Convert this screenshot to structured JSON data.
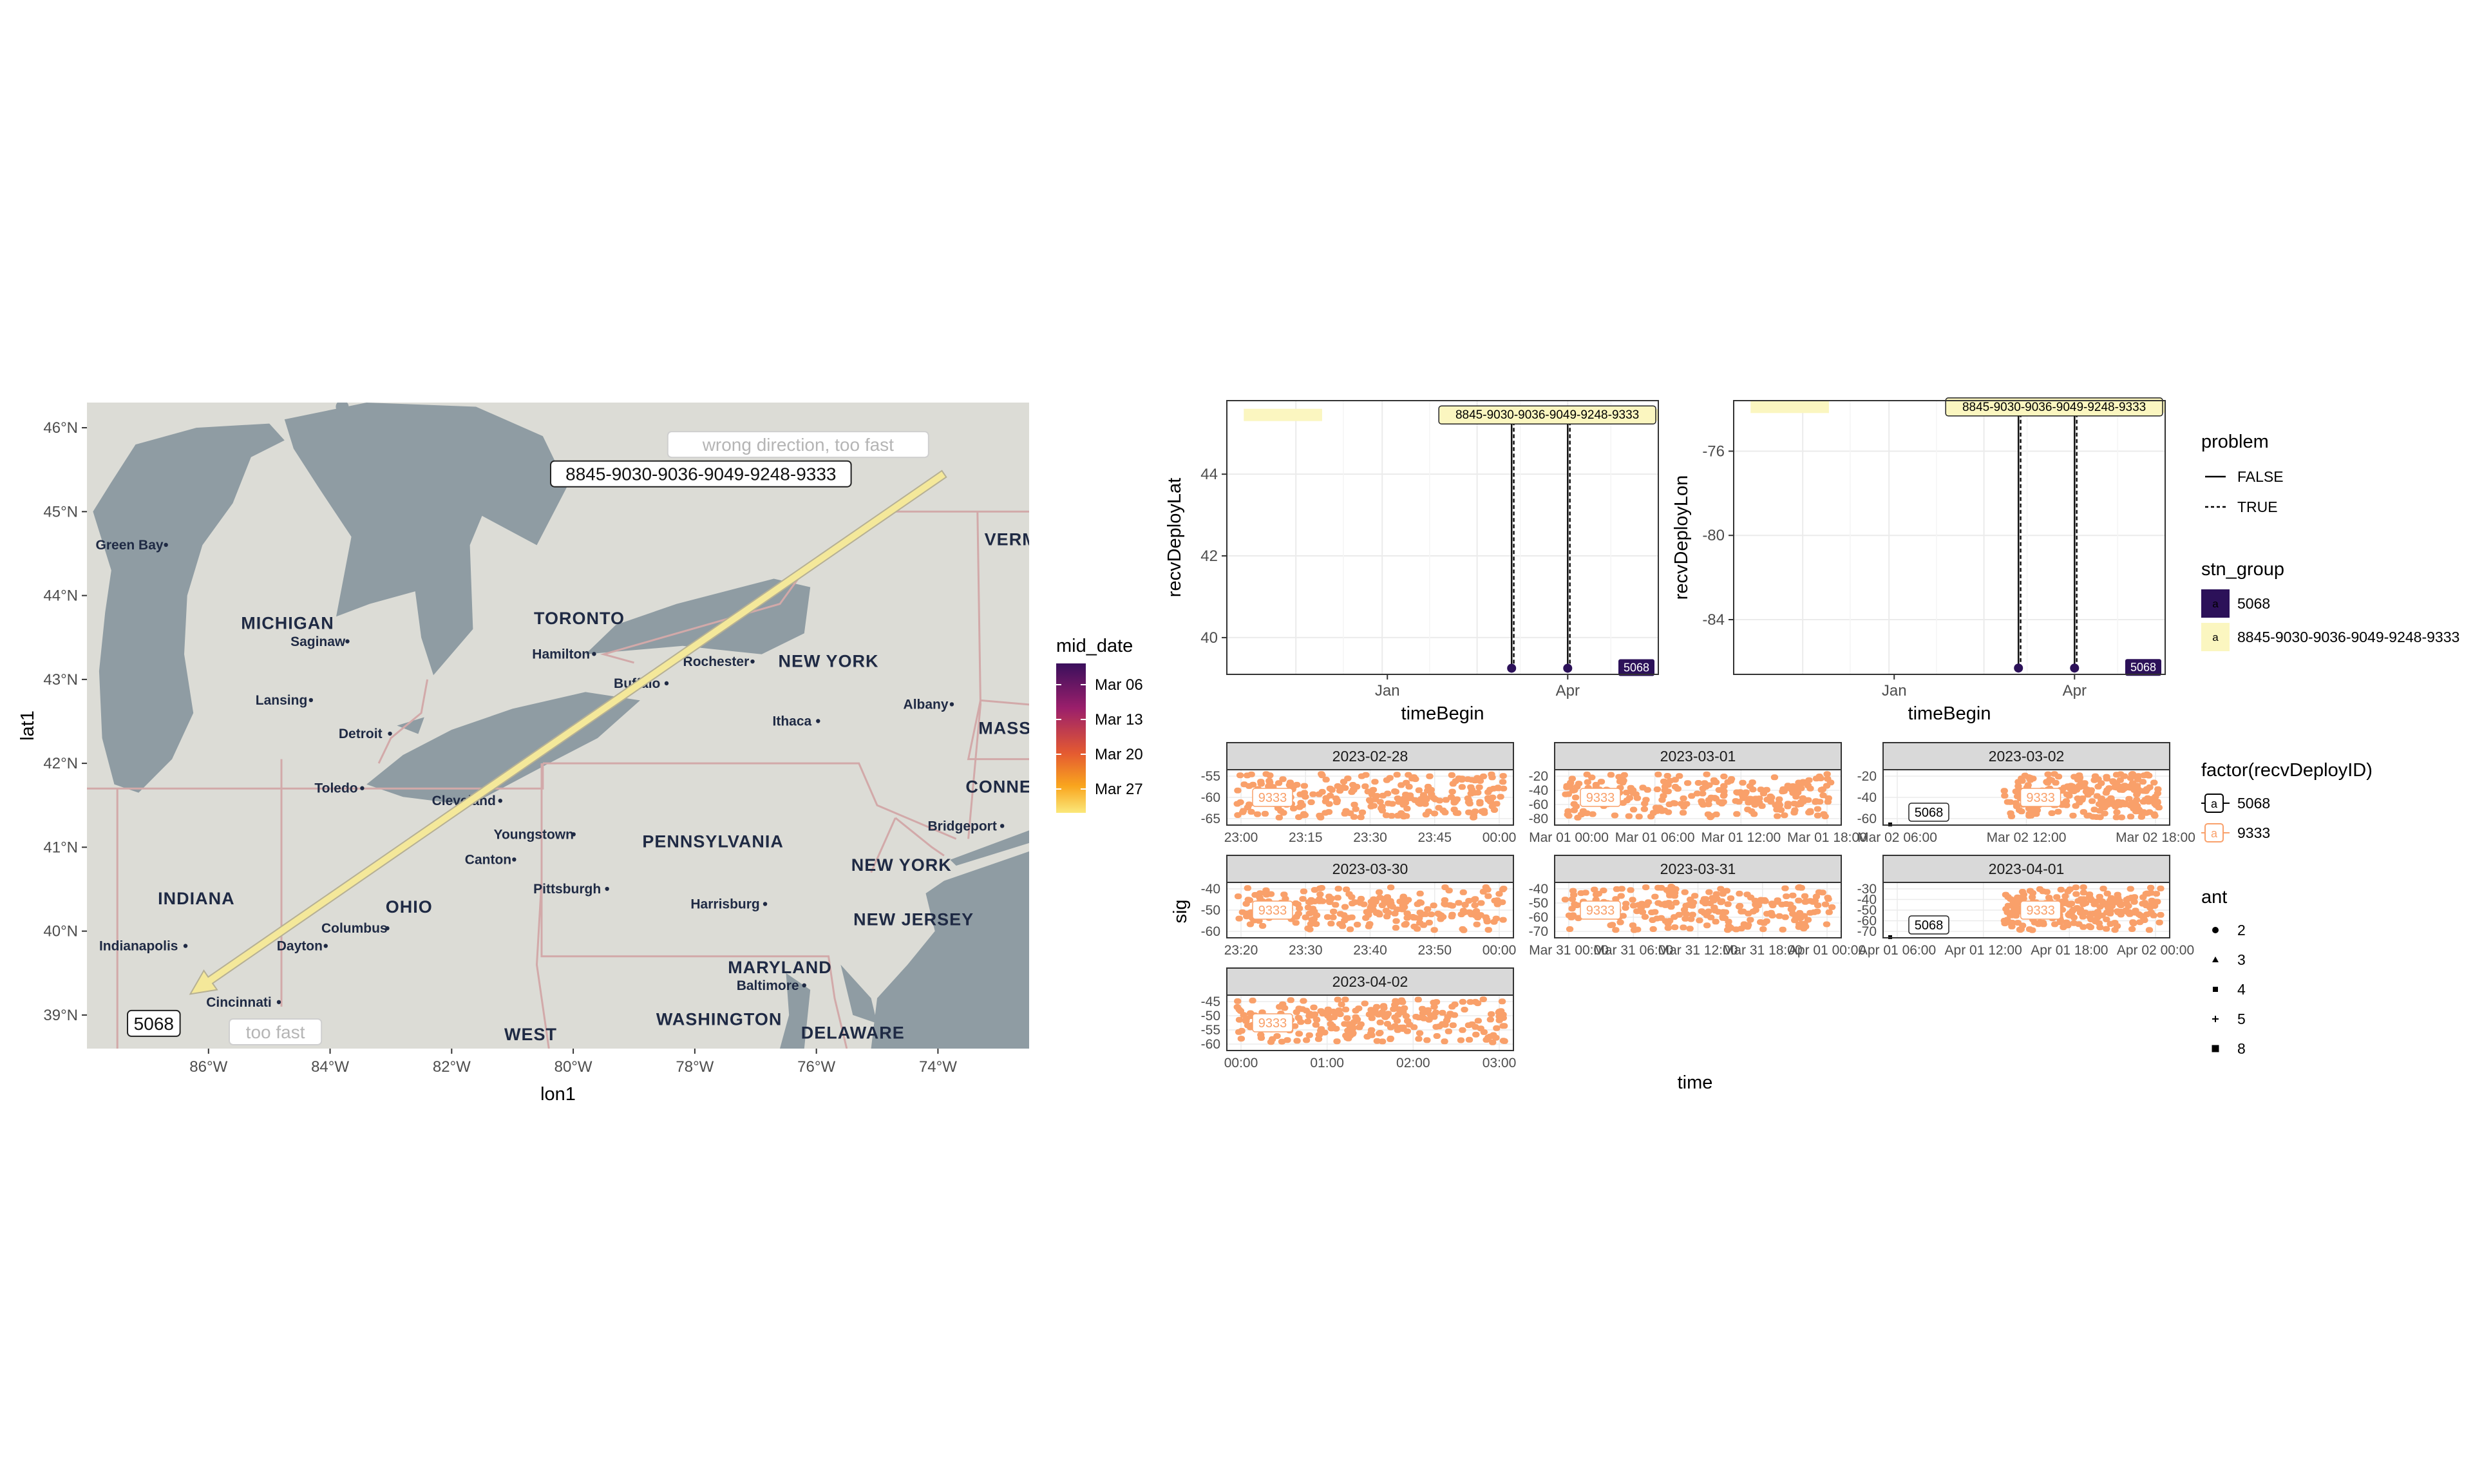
{
  "colors": {
    "water": "#8f9ca3",
    "land": "#dcdcd6",
    "border": "#d2a9a9",
    "path_fill": "#f4e89a",
    "path_edge": "#b6b094",
    "label_text": "#1f2a44",
    "accent_orange": "#f9a06a",
    "grp_5068": "#2c1159",
    "grp_other": "#fbf6c0",
    "panel_border": "#333333",
    "strip_fill": "#d9d9d9",
    "grid": "#ebebeb"
  },
  "map": {
    "xlabel": "lon1",
    "ylabel": "lat1",
    "xlim": [
      -88,
      -72.5
    ],
    "ylim": [
      38.6,
      46.3
    ],
    "x_ticks": [
      {
        "v": -86,
        "t": "86°W"
      },
      {
        "v": -84,
        "t": "84°W"
      },
      {
        "v": -82,
        "t": "82°W"
      },
      {
        "v": -80,
        "t": "80°W"
      },
      {
        "v": -78,
        "t": "78°W"
      },
      {
        "v": -76,
        "t": "76°W"
      },
      {
        "v": -74,
        "t": "74°W"
      }
    ],
    "y_ticks": [
      {
        "v": 39,
        "t": "39°N"
      },
      {
        "v": 40,
        "t": "40°N"
      },
      {
        "v": 41,
        "t": "41°N"
      },
      {
        "v": 42,
        "t": "42°N"
      },
      {
        "v": 43,
        "t": "43°N"
      },
      {
        "v": 44,
        "t": "44°N"
      },
      {
        "v": 45,
        "t": "45°N"
      },
      {
        "v": 46,
        "t": "46°N"
      }
    ],
    "places": [
      {
        "name": "Green Bay",
        "lon": -87.3,
        "lat": 44.55,
        "kind": "city"
      },
      {
        "name": "MICHIGAN",
        "lon": -84.7,
        "lat": 43.6,
        "kind": "region"
      },
      {
        "name": "Saginaw",
        "lon": -84.2,
        "lat": 43.4,
        "kind": "city"
      },
      {
        "name": "Lansing",
        "lon": -84.8,
        "lat": 42.7,
        "kind": "city"
      },
      {
        "name": "Detroit",
        "lon": -83.5,
        "lat": 42.3,
        "kind": "city"
      },
      {
        "name": "TORONTO",
        "lon": -79.9,
        "lat": 43.66,
        "kind": "region"
      },
      {
        "name": "Hamilton",
        "lon": -80.2,
        "lat": 43.25,
        "kind": "city"
      },
      {
        "name": "Rochester",
        "lon": -77.65,
        "lat": 43.16,
        "kind": "city"
      },
      {
        "name": "NEW YORK",
        "lon": -75.8,
        "lat": 43.15,
        "kind": "region"
      },
      {
        "name": "Buffalo",
        "lon": -78.95,
        "lat": 42.9,
        "kind": "city"
      },
      {
        "name": "Albany",
        "lon": -74.2,
        "lat": 42.65,
        "kind": "city"
      },
      {
        "name": "Ithaca",
        "lon": -76.4,
        "lat": 42.45,
        "kind": "city"
      },
      {
        "name": "MASS",
        "lon": -72.9,
        "lat": 42.35,
        "kind": "region"
      },
      {
        "name": "Toledo",
        "lon": -83.9,
        "lat": 41.65,
        "kind": "city"
      },
      {
        "name": "Cleveland",
        "lon": -81.8,
        "lat": 41.5,
        "kind": "city"
      },
      {
        "name": "CONNECT",
        "lon": -72.8,
        "lat": 41.65,
        "kind": "region"
      },
      {
        "name": "Bridgeport",
        "lon": -73.6,
        "lat": 41.2,
        "kind": "city"
      },
      {
        "name": "Youngstown",
        "lon": -80.65,
        "lat": 41.1,
        "kind": "city"
      },
      {
        "name": "PENNSYLVANIA",
        "lon": -77.7,
        "lat": 41.0,
        "kind": "region"
      },
      {
        "name": "Canton",
        "lon": -81.4,
        "lat": 40.8,
        "kind": "city"
      },
      {
        "name": "NEW YORK",
        "lon": -74.6,
        "lat": 40.72,
        "kind": "region"
      },
      {
        "name": "Pittsburgh",
        "lon": -80.1,
        "lat": 40.45,
        "kind": "city"
      },
      {
        "name": "INDIANA",
        "lon": -86.2,
        "lat": 40.32,
        "kind": "region"
      },
      {
        "name": "OHIO",
        "lon": -82.7,
        "lat": 40.22,
        "kind": "region"
      },
      {
        "name": "Harrisburg",
        "lon": -77.5,
        "lat": 40.27,
        "kind": "city"
      },
      {
        "name": "NEW JERSEY",
        "lon": -74.4,
        "lat": 40.07,
        "kind": "region"
      },
      {
        "name": "Columbus",
        "lon": -83.6,
        "lat": 39.98,
        "kind": "city"
      },
      {
        "name": "Indianapolis",
        "lon": -87.15,
        "lat": 39.77,
        "kind": "city"
      },
      {
        "name": "Dayton",
        "lon": -84.5,
        "lat": 39.77,
        "kind": "city"
      },
      {
        "name": "MARYLAND",
        "lon": -76.6,
        "lat": 39.5,
        "kind": "region"
      },
      {
        "name": "Baltimore",
        "lon": -76.8,
        "lat": 39.3,
        "kind": "city"
      },
      {
        "name": "Cincinnati",
        "lon": -85.5,
        "lat": 39.1,
        "kind": "city"
      },
      {
        "name": "WASHINGTON",
        "lon": -77.6,
        "lat": 38.88,
        "kind": "region"
      },
      {
        "name": "WEST",
        "lon": -80.7,
        "lat": 38.7,
        "kind": "region"
      },
      {
        "name": "DELAWARE",
        "lon": -75.4,
        "lat": 38.72,
        "kind": "region"
      },
      {
        "name": "VERM",
        "lon": -72.8,
        "lat": 44.6,
        "kind": "region"
      }
    ],
    "track": {
      "from": {
        "lon": -73.9,
        "lat": 45.45
      },
      "to": {
        "lon": -86.3,
        "lat": 39.25
      }
    },
    "labels": [
      {
        "text": "wrong direction, too fast",
        "lon": -76.3,
        "lat": 45.8,
        "style": "faded"
      },
      {
        "text": "8845-9030-9036-9049-9248-9333",
        "lon": -77.9,
        "lat": 45.45,
        "style": "solid"
      },
      {
        "text": "5068",
        "lon": -86.9,
        "lat": 38.9,
        "style": "solid"
      },
      {
        "text": "too fast",
        "lon": -84.9,
        "lat": 38.8,
        "style": "faded"
      }
    ],
    "legend": {
      "title": "mid_date",
      "breaks": [
        "Mar 06",
        "Mar 13",
        "Mar 20",
        "Mar 27"
      ]
    }
  },
  "chart_data": [
    {
      "type": "line",
      "title": "",
      "xlabel": "timeBegin",
      "ylabel": "recvDeployLat",
      "x_ticks": [
        "Jan",
        "Apr"
      ],
      "y_ticks": [
        40,
        42,
        44
      ],
      "ylim": [
        39.1,
        45.8
      ],
      "series": [
        {
          "name": "5068",
          "x": [
            "Mar 01",
            "Mar 01"
          ],
          "y": [
            45.45,
            39.25
          ]
        },
        {
          "name": "5068",
          "x": [
            "Apr 01",
            "Apr 01"
          ],
          "y": [
            45.45,
            39.25
          ]
        }
      ],
      "labels": [
        "8845-9030-9036-9049-9248-9333",
        "5068"
      ]
    },
    {
      "type": "line",
      "title": "",
      "xlabel": "timeBegin",
      "ylabel": "recvDeployLon",
      "x_ticks": [
        "Jan",
        "Apr"
      ],
      "y_ticks": [
        -76,
        -80,
        -84
      ],
      "ylim": [
        -86.6,
        -73.6
      ],
      "series": [
        {
          "name": "5068",
          "x": [
            "Mar 01",
            "Mar 01"
          ],
          "y": [
            -73.9,
            -86.3
          ]
        },
        {
          "name": "5068",
          "x": [
            "Apr 01",
            "Apr 01"
          ],
          "y": [
            -73.9,
            -86.3
          ]
        }
      ],
      "labels": [
        "8845-9030-9036-9049-9248-9333",
        "5068"
      ]
    },
    {
      "type": "scatter",
      "title": "",
      "xlabel": "time",
      "ylabel": "sig",
      "facets": [
        {
          "strip": "2023-02-28",
          "x_ticks": [
            "23:00",
            "23:15",
            "23:30",
            "23:45",
            "00:00"
          ],
          "y_ticks": [
            "-55",
            "-60",
            "-65"
          ],
          "label": "9333"
        },
        {
          "strip": "2023-03-01",
          "x_ticks": [
            "Mar 01 00:00",
            "Mar 01 06:00",
            "Mar 01 12:00",
            "Mar 01 18:00"
          ],
          "y_ticks": [
            "-20",
            "-40",
            "-60",
            "-80"
          ],
          "label": "9333"
        },
        {
          "strip": "2023-03-02",
          "x_ticks": [
            "Mar 02 06:00",
            "Mar 02 12:00",
            "Mar 02 18:00"
          ],
          "y_ticks": [
            "-20",
            "-40",
            "-60"
          ],
          "label": "9333",
          "label2": "5068"
        },
        {
          "strip": "2023-03-30",
          "x_ticks": [
            "23:20",
            "23:30",
            "23:40",
            "23:50",
            "00:00"
          ],
          "y_ticks": [
            "-40",
            "-50",
            "-60"
          ],
          "label": "9333"
        },
        {
          "strip": "2023-03-31",
          "x_ticks": [
            "Mar 31 00:00",
            "Mar 31 06:00",
            "Mar 31 12:00",
            "Mar 31 18:00",
            "Apr 01 00:00"
          ],
          "y_ticks": [
            "-40",
            "-50",
            "-60",
            "-70"
          ],
          "label": "9333"
        },
        {
          "strip": "2023-04-01",
          "x_ticks": [
            "Apr 01 06:00",
            "Apr 01 12:00",
            "Apr 01 18:00",
            "Apr 02 00:00"
          ],
          "y_ticks": [
            "-30",
            "-40",
            "-50",
            "-60",
            "-70"
          ],
          "label": "9333",
          "label2": "5068"
        },
        {
          "strip": "2023-04-02",
          "x_ticks": [
            "00:00",
            "01:00",
            "02:00",
            "03:00"
          ],
          "y_ticks": [
            "-45",
            "-50",
            "-55",
            "-60"
          ],
          "label": "9333"
        }
      ]
    }
  ],
  "legends": {
    "problem": {
      "title": "problem",
      "items": [
        "FALSE",
        "TRUE"
      ]
    },
    "stn_group": {
      "title": "stn_group",
      "items": [
        "5068",
        "8845-9030-9036-9049-9248-9333"
      ]
    },
    "recv": {
      "title": "factor(recvDeployID)",
      "items": [
        "5068",
        "9333"
      ]
    },
    "ant": {
      "title": "ant",
      "items": [
        "2",
        "3",
        "4",
        "5",
        "8"
      ]
    }
  }
}
